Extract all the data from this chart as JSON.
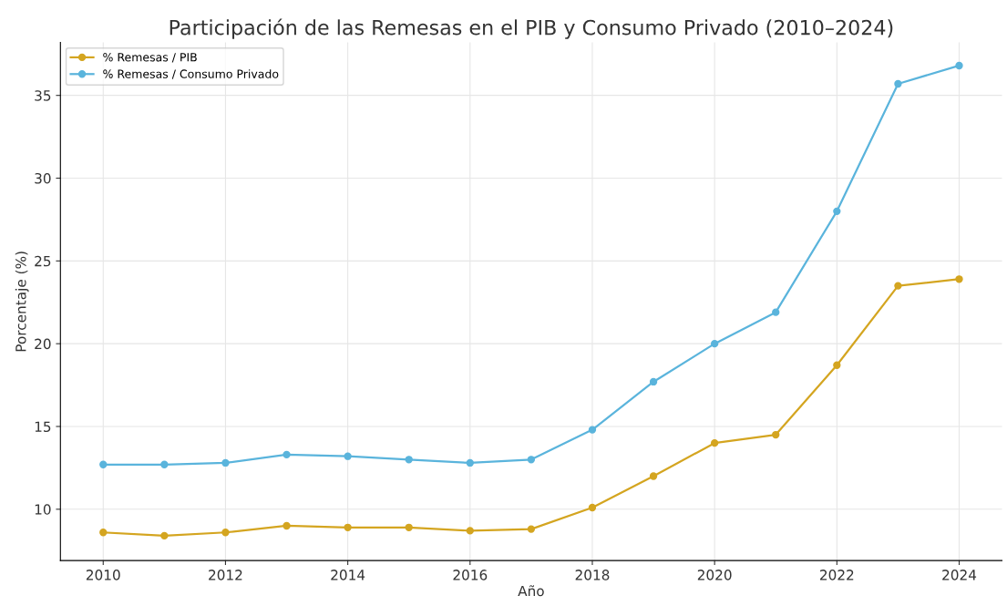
{
  "chart_data": {
    "type": "line",
    "title": "Participación de las Remesas en el PIB y Consumo Privado (2010–2024)",
    "xlabel": "Año",
    "ylabel": "Porcentaje (%)",
    "x": [
      2010,
      2011,
      2012,
      2013,
      2014,
      2015,
      2016,
      2017,
      2018,
      2019,
      2020,
      2021,
      2022,
      2023,
      2024
    ],
    "series": [
      {
        "name": "% Remesas / PIB",
        "color": "#d4a520",
        "values": [
          8.6,
          8.4,
          8.6,
          9.0,
          8.9,
          8.9,
          8.7,
          8.8,
          10.1,
          12.0,
          14.0,
          14.5,
          18.7,
          23.5,
          23.9
        ]
      },
      {
        "name": "% Remesas / Consumo Privado",
        "color": "#5ab4dc",
        "values": [
          12.7,
          12.7,
          12.8,
          13.3,
          13.2,
          13.0,
          12.8,
          13.0,
          14.8,
          17.7,
          20.0,
          21.9,
          28.0,
          35.7,
          36.8
        ]
      }
    ],
    "xlim": [
      2009.3,
      2024.7
    ],
    "ylim": [
      6.9,
      38.2
    ],
    "xticks": [
      2010,
      2012,
      2014,
      2016,
      2018,
      2020,
      2022,
      2024
    ],
    "yticks": [
      10,
      15,
      20,
      25,
      30,
      35
    ],
    "grid": true,
    "legend": "top left",
    "marker": "circle",
    "line_style": "solid"
  }
}
